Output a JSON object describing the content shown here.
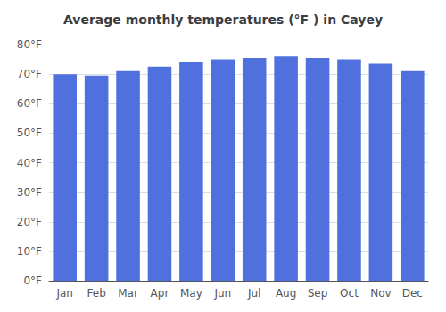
{
  "chart_data": {
    "type": "bar",
    "title": "Average monthly temperatures (°F ) in Cayey",
    "categories": [
      "Jan",
      "Feb",
      "Mar",
      "Apr",
      "May",
      "Jun",
      "Jul",
      "Aug",
      "Sep",
      "Oct",
      "Nov",
      "Dec"
    ],
    "values": [
      70,
      69.5,
      71,
      72.5,
      74,
      75,
      75.5,
      76,
      75.5,
      75,
      73.5,
      71
    ],
    "ylim": [
      0,
      80
    ],
    "yticks": [
      {
        "value": 0,
        "label": "0°F"
      },
      {
        "value": 10,
        "label": "10°F"
      },
      {
        "value": 20,
        "label": "20°F"
      },
      {
        "value": 30,
        "label": "30°F"
      },
      {
        "value": 40,
        "label": "40°F"
      },
      {
        "value": 50,
        "label": "50°F"
      },
      {
        "value": 60,
        "label": "60°F"
      },
      {
        "value": 70,
        "label": "70°F"
      },
      {
        "value": 80,
        "label": "80°F"
      }
    ],
    "grid": true
  }
}
